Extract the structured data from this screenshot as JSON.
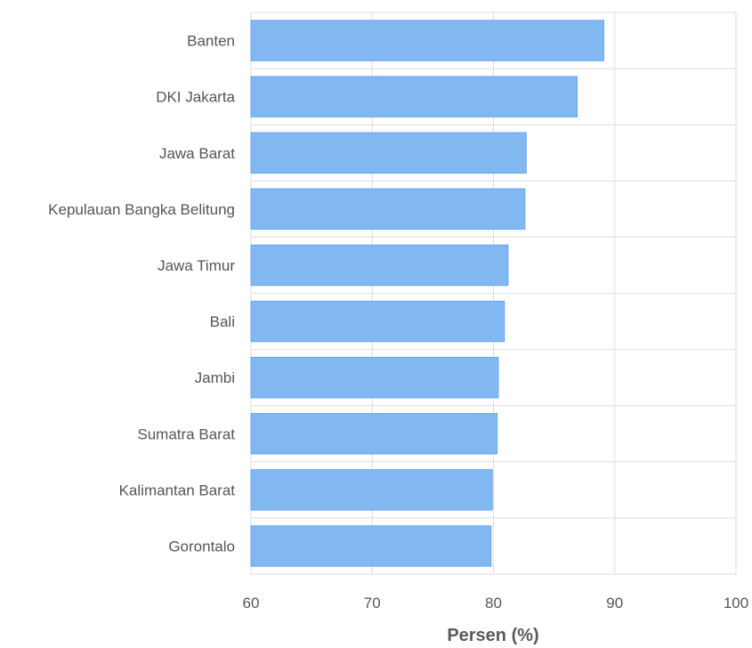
{
  "chart_data": {
    "type": "bar",
    "orientation": "horizontal",
    "categories": [
      "Banten",
      "DKI Jakarta",
      "Jawa Barat",
      "Kepulauan Bangka Belitung",
      "Jawa Timur",
      "Bali",
      "Jambi",
      "Sumatra Barat",
      "Kalimantan Barat",
      "Gorontalo"
    ],
    "values": [
      89.1,
      86.9,
      82.7,
      82.6,
      81.2,
      80.9,
      80.4,
      80.3,
      79.9,
      79.8
    ],
    "xlabel": "Persen (%)",
    "xlim": [
      60,
      100
    ],
    "xticks": [
      60,
      70,
      80,
      90,
      100
    ],
    "grid": true,
    "bar_color": "#82b8f2",
    "bar_edge_color": "#6aa6ea"
  }
}
